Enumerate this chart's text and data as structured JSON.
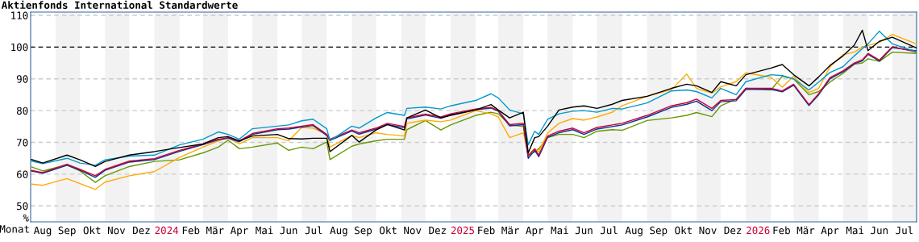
{
  "chart_data": {
    "type": "line",
    "title": "Aktienfonds International Standardwerte",
    "xlabel": "Monat",
    "ylabel": "%",
    "x": [
      "2023-08-02",
      "2023-08-16",
      "2023-09-15",
      "2023-10-01",
      "2023-10-20",
      "2023-11-01",
      "2023-12-01",
      "2024-01-01",
      "2024-02-01",
      "2024-03-01",
      "2024-03-20",
      "2024-04-01",
      "2024-04-15",
      "2024-05-01",
      "2024-06-01",
      "2024-06-15",
      "2024-07-01",
      "2024-07-15",
      "2024-08-01",
      "2024-08-05",
      "2024-09-01",
      "2024-09-10",
      "2024-10-01",
      "2024-10-15",
      "2024-11-05",
      "2024-11-08",
      "2024-12-01",
      "2024-12-20",
      "2025-01-01",
      "2025-02-01",
      "2025-02-20",
      "2025-03-01",
      "2025-03-15",
      "2025-04-01",
      "2025-04-07",
      "2025-04-15",
      "2025-04-20",
      "2025-05-01",
      "2025-05-15",
      "2025-06-01",
      "2025-06-15",
      "2025-07-01",
      "2025-07-20",
      "2025-08-01",
      "2025-09-01",
      "2025-10-01",
      "2025-10-20",
      "2025-11-01",
      "2025-11-20",
      "2025-12-01",
      "2025-12-20",
      "2026-01-01",
      "2026-02-01",
      "2026-02-15",
      "2026-03-01",
      "2026-03-20",
      "2026-04-01",
      "2026-04-15",
      "2026-05-01",
      "2026-05-15",
      "2026-05-25",
      "2026-06-01",
      "2026-06-15",
      "2026-07-01",
      "2026-07-31"
    ],
    "series": [
      {
        "color": "#669900",
        "values": [
          62.3,
          61.0,
          63.0,
          61.0,
          57.4,
          59.5,
          62.4,
          64.0,
          64.5,
          66.7,
          68.5,
          70.7,
          68.0,
          68.5,
          69.8,
          67.5,
          68.5,
          68.0,
          70.1,
          64.6,
          68.8,
          69.5,
          70.5,
          71.0,
          71.0,
          74.0,
          76.9,
          73.9,
          75.5,
          78.5,
          79.5,
          79.0,
          75.5,
          75.0,
          66.0,
          67.0,
          68.0,
          71.5,
          72.5,
          72.5,
          71.5,
          73.5,
          74.0,
          73.8,
          76.9,
          77.7,
          78.5,
          79.4,
          78.1,
          81.5,
          83.6,
          87.0,
          86.5,
          90.8,
          90.0,
          85.0,
          86.0,
          89.0,
          91.7,
          94.6,
          95.0,
          96.3,
          95.5,
          98.4,
          98.0
        ]
      },
      {
        "color": "#ffaa00",
        "values": [
          56.9,
          56.5,
          58.6,
          57.0,
          55.2,
          57.5,
          59.5,
          60.8,
          65.3,
          68.5,
          70.5,
          71.5,
          69.5,
          71.5,
          71.5,
          70.5,
          74.7,
          74.5,
          72.5,
          68.5,
          72.2,
          71.5,
          73.0,
          72.5,
          72.0,
          76.0,
          77.0,
          76.5,
          77.0,
          80.0,
          79.0,
          78.0,
          71.5,
          73.0,
          66.0,
          68.0,
          67.0,
          73.0,
          76.0,
          77.5,
          77.0,
          78.0,
          79.5,
          81.5,
          84.5,
          86.6,
          91.5,
          87.0,
          85.5,
          87.5,
          89.1,
          91.9,
          90.5,
          87.4,
          90.8,
          85.7,
          87.0,
          93.8,
          97.6,
          98.4,
          100.0,
          100.5,
          101.5,
          104.0,
          101.0
        ]
      },
      {
        "color": "#003399",
        "values": [
          61.0,
          60.3,
          62.8,
          61.2,
          59.0,
          61.2,
          63.8,
          64.6,
          67.2,
          69.3,
          70.8,
          71.3,
          70.2,
          72.5,
          74.0,
          74.2,
          74.8,
          75.3,
          72.2,
          70.6,
          73.6,
          72.6,
          74.2,
          75.6,
          74.6,
          77.4,
          78.6,
          77.6,
          78.7,
          80.3,
          80.8,
          79.8,
          75.2,
          75.6,
          65.0,
          67.5,
          65.5,
          71.6,
          73.0,
          74.0,
          72.5,
          74.2,
          75.0,
          75.5,
          78.0,
          81.0,
          82.0,
          83.0,
          80.0,
          82.8,
          83.1,
          86.7,
          86.7,
          85.9,
          88.0,
          81.6,
          85.0,
          90.0,
          92.2,
          94.7,
          95.7,
          97.7,
          95.6,
          99.8,
          98.8
        ]
      },
      {
        "color": "#cc0033",
        "values": [
          61.2,
          60.5,
          63.1,
          61.5,
          59.5,
          61.5,
          64.1,
          64.9,
          67.5,
          69.5,
          71.0,
          71.5,
          70.5,
          72.8,
          74.3,
          74.5,
          75.1,
          75.6,
          72.5,
          71.0,
          73.9,
          73.0,
          74.5,
          76.0,
          75.0,
          77.7,
          78.9,
          78.0,
          79.0,
          80.5,
          81.0,
          80.0,
          75.6,
          76.0,
          65.8,
          68.0,
          66.0,
          72.0,
          73.5,
          74.5,
          73.0,
          74.7,
          75.5,
          76.0,
          78.5,
          81.5,
          82.5,
          83.6,
          80.7,
          83.2,
          83.5,
          87.0,
          87.0,
          86.2,
          88.3,
          81.9,
          85.3,
          90.4,
          92.5,
          95.0,
          96.0,
          98.0,
          95.9,
          100.1,
          98.4
        ]
      },
      {
        "color": "#0099cc",
        "values": [
          64.1,
          63.3,
          65.0,
          63.5,
          62.8,
          64.5,
          65.7,
          66.0,
          69.2,
          71.0,
          73.3,
          72.5,
          71.0,
          74.3,
          75.1,
          75.5,
          76.8,
          77.3,
          74.3,
          70.5,
          75.1,
          74.5,
          77.7,
          79.4,
          78.5,
          80.7,
          81.1,
          80.5,
          81.5,
          83.2,
          85.3,
          84.0,
          80.2,
          79.0,
          69.2,
          73.5,
          72.5,
          77.3,
          79.0,
          79.8,
          80.0,
          79.5,
          80.7,
          80.5,
          82.4,
          86.2,
          86.5,
          86.0,
          84.0,
          87.0,
          85.0,
          89.1,
          91.3,
          91.0,
          90.0,
          86.5,
          89.0,
          92.0,
          93.8,
          97.2,
          99.5,
          101.0,
          105.0,
          101.0,
          98.5
        ]
      },
      {
        "color": "#000000",
        "values": [
          64.6,
          63.5,
          66.0,
          64.5,
          62.4,
          64.0,
          66.0,
          67.1,
          68.4,
          69.5,
          71.5,
          71.8,
          70.5,
          72.0,
          72.5,
          71.2,
          71.1,
          71.3,
          71.3,
          67.1,
          72.2,
          70.1,
          73.9,
          75.6,
          73.9,
          77.7,
          80.2,
          77.7,
          78.5,
          80.2,
          81.9,
          80.2,
          77.7,
          79.5,
          66.7,
          71.5,
          71.8,
          75.1,
          80.2,
          81.1,
          81.5,
          80.7,
          82.0,
          83.2,
          84.5,
          87.0,
          88.3,
          87.8,
          85.7,
          89.1,
          87.8,
          91.3,
          93.4,
          94.5,
          91.3,
          87.8,
          90.6,
          94.2,
          97.2,
          100.6,
          105.3,
          98.9,
          101.8,
          103.1,
          99.7
        ]
      }
    ],
    "xlim": [
      "2023-08-01",
      "2026-07-31"
    ],
    "xticks": [
      {
        "value": "2023-08-16",
        "label": "Aug"
      },
      {
        "value": "2023-09-15",
        "label": "Sep"
      },
      {
        "value": "2023-10-16",
        "label": "Okt"
      },
      {
        "value": "2023-11-15",
        "label": "Nov"
      },
      {
        "value": "2023-12-16",
        "label": "Dez"
      },
      {
        "value": "2024-01-16",
        "label": "2024"
      },
      {
        "value": "2024-02-15",
        "label": "Feb"
      },
      {
        "value": "2024-03-16",
        "label": "Mär"
      },
      {
        "value": "2024-04-15",
        "label": "Apr"
      },
      {
        "value": "2024-05-16",
        "label": "Mai"
      },
      {
        "value": "2024-06-15",
        "label": "Jun"
      },
      {
        "value": "2024-07-16",
        "label": "Jul"
      },
      {
        "value": "2024-08-16",
        "label": "Aug"
      },
      {
        "value": "2024-09-15",
        "label": "Sep"
      },
      {
        "value": "2024-10-16",
        "label": "Okt"
      },
      {
        "value": "2024-11-15",
        "label": "Nov"
      },
      {
        "value": "2024-12-16",
        "label": "Dez"
      },
      {
        "value": "2025-01-16",
        "label": "2025"
      },
      {
        "value": "2025-02-14",
        "label": "Feb"
      },
      {
        "value": "2025-03-16",
        "label": "Mär"
      },
      {
        "value": "2025-04-15",
        "label": "Apr"
      },
      {
        "value": "2025-05-16",
        "label": "Mai"
      },
      {
        "value": "2025-06-15",
        "label": "Jun"
      },
      {
        "value": "2025-07-16",
        "label": "Jul"
      },
      {
        "value": "2025-08-16",
        "label": "Aug"
      },
      {
        "value": "2025-09-15",
        "label": "Sep"
      },
      {
        "value": "2025-10-16",
        "label": "Okt"
      },
      {
        "value": "2025-11-15",
        "label": "Nov"
      },
      {
        "value": "2025-12-16",
        "label": "Dez"
      },
      {
        "value": "2026-01-16",
        "label": "2026"
      },
      {
        "value": "2026-02-14",
        "label": "Feb"
      },
      {
        "value": "2026-03-16",
        "label": "Mär"
      },
      {
        "value": "2026-04-15",
        "label": "Apr"
      },
      {
        "value": "2026-05-16",
        "label": "Mai"
      },
      {
        "value": "2026-06-15",
        "label": "Jun"
      },
      {
        "value": "2026-07-16",
        "label": "Jul"
      }
    ],
    "ylim": [
      45,
      111
    ],
    "yticks": [
      50,
      60,
      70,
      80,
      90,
      100,
      110
    ],
    "grid": "y",
    "legend": false,
    "marker": "none",
    "line_style": "solid",
    "ref_lines": [
      {
        "axis": "y",
        "value": 100,
        "color": "#000000",
        "line_style": "dashed"
      }
    ],
    "bands": [
      {
        "axis": "x",
        "from": "2023-09-01",
        "to": "2023-10-01",
        "color": "#f2f2f2"
      },
      {
        "axis": "x",
        "from": "2023-11-01",
        "to": "2023-12-01",
        "color": "#f2f2f2"
      },
      {
        "axis": "x",
        "from": "2024-01-01",
        "to": "2024-02-01",
        "color": "#f2f2f2"
      },
      {
        "axis": "x",
        "from": "2024-03-01",
        "to": "2024-04-01",
        "color": "#f2f2f2"
      },
      {
        "axis": "x",
        "from": "2024-05-01",
        "to": "2024-06-01",
        "color": "#f2f2f2"
      },
      {
        "axis": "x",
        "from": "2024-07-01",
        "to": "2024-08-01",
        "color": "#f2f2f2"
      },
      {
        "axis": "x",
        "from": "2024-09-01",
        "to": "2024-10-01",
        "color": "#f2f2f2"
      },
      {
        "axis": "x",
        "from": "2024-11-01",
        "to": "2024-12-01",
        "color": "#f2f2f2"
      },
      {
        "axis": "x",
        "from": "2025-01-01",
        "to": "2025-02-01",
        "color": "#f2f2f2"
      },
      {
        "axis": "x",
        "from": "2025-03-01",
        "to": "2025-04-01",
        "color": "#f2f2f2"
      },
      {
        "axis": "x",
        "from": "2025-05-01",
        "to": "2025-06-01",
        "color": "#f2f2f2"
      },
      {
        "axis": "x",
        "from": "2025-07-01",
        "to": "2025-08-01",
        "color": "#f2f2f2"
      },
      {
        "axis": "x",
        "from": "2025-09-01",
        "to": "2025-10-01",
        "color": "#f2f2f2"
      },
      {
        "axis": "x",
        "from": "2025-11-01",
        "to": "2025-12-01",
        "color": "#f2f2f2"
      },
      {
        "axis": "x",
        "from": "2026-01-01",
        "to": "2026-02-01",
        "color": "#f2f2f2"
      },
      {
        "axis": "x",
        "from": "2026-03-01",
        "to": "2026-04-01",
        "color": "#f2f2f2"
      },
      {
        "axis": "x",
        "from": "2026-05-01",
        "to": "2026-06-01",
        "color": "#f2f2f2"
      },
      {
        "axis": "x",
        "from": "2026-07-01",
        "to": "2026-07-31",
        "color": "#f2f2f2"
      }
    ]
  }
}
